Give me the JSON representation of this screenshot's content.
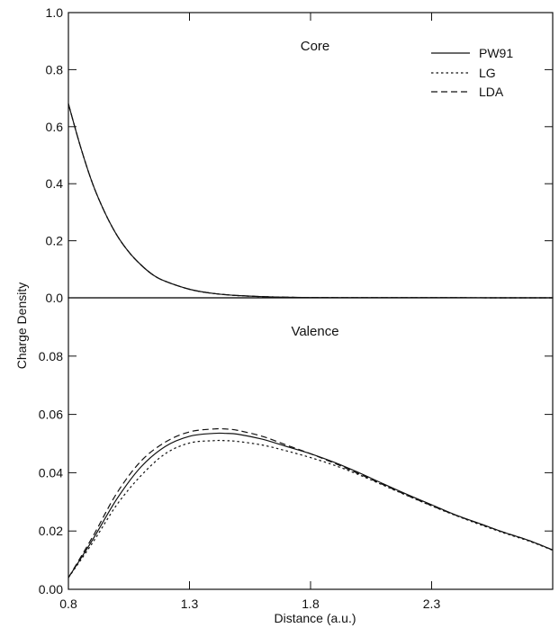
{
  "chart_data": [
    {
      "type": "line",
      "title": "Core",
      "xlabel": "Distance (a.u.)",
      "ylabel": "Charge Density",
      "xlim": [
        0.8,
        2.8
      ],
      "ylim": [
        0.0,
        1.0
      ],
      "yticks": [
        "0.0",
        "0.2",
        "0.4",
        "0.6",
        "0.8",
        "1.0"
      ],
      "ytick_values": [
        0.0,
        0.2,
        0.4,
        0.6,
        0.8,
        1.0
      ],
      "legend_position": "top-right",
      "series": [
        {
          "name": "PW91",
          "style": "solid",
          "x": [
            0.8,
            0.85,
            0.9,
            0.95,
            1.0,
            1.05,
            1.1,
            1.15,
            1.2,
            1.3,
            1.4,
            1.5,
            1.6,
            1.7,
            1.8,
            2.0,
            2.2,
            2.4,
            2.6,
            2.8
          ],
          "y": [
            0.68,
            0.53,
            0.4,
            0.3,
            0.22,
            0.16,
            0.115,
            0.08,
            0.058,
            0.03,
            0.015,
            0.008,
            0.004,
            0.002,
            0.001,
            0.0005,
            0.0003,
            0.0002,
            0.0001,
            0.0001
          ]
        },
        {
          "name": "LG",
          "style": "dotted",
          "x": [
            0.8,
            0.85,
            0.9,
            0.95,
            1.0,
            1.05,
            1.1,
            1.15,
            1.2,
            1.3,
            1.4,
            1.5,
            1.6,
            1.7,
            1.8,
            2.0,
            2.2,
            2.4,
            2.6,
            2.8
          ],
          "y": [
            0.68,
            0.53,
            0.4,
            0.3,
            0.22,
            0.16,
            0.115,
            0.08,
            0.058,
            0.03,
            0.015,
            0.008,
            0.004,
            0.002,
            0.001,
            0.0005,
            0.0003,
            0.0002,
            0.0001,
            0.0001
          ]
        },
        {
          "name": "LDA",
          "style": "dashed",
          "x": [
            0.8,
            0.85,
            0.9,
            0.95,
            1.0,
            1.05,
            1.1,
            1.15,
            1.2,
            1.3,
            1.4,
            1.5,
            1.6,
            1.7,
            1.8,
            2.0,
            2.2,
            2.4,
            2.6,
            2.8
          ],
          "y": [
            0.68,
            0.53,
            0.4,
            0.3,
            0.22,
            0.16,
            0.115,
            0.08,
            0.058,
            0.03,
            0.015,
            0.008,
            0.004,
            0.002,
            0.001,
            0.0005,
            0.0003,
            0.0002,
            0.0001,
            0.0001
          ]
        }
      ]
    },
    {
      "type": "line",
      "title": "Valence",
      "xlabel": "Distance (a.u.)",
      "ylabel": "Charge Density",
      "xlim": [
        0.8,
        2.8
      ],
      "ylim": [
        0.0,
        0.1
      ],
      "xticks": [
        "0.8",
        "1.3",
        "1.8",
        "2.3"
      ],
      "xtick_values": [
        0.8,
        1.3,
        1.8,
        2.3
      ],
      "yticks": [
        "0.00",
        "0.02",
        "0.04",
        "0.06",
        "0.08"
      ],
      "ytick_values": [
        0.0,
        0.02,
        0.04,
        0.06,
        0.08
      ],
      "series": [
        {
          "name": "PW91",
          "style": "solid",
          "x": [
            0.8,
            0.9,
            1.0,
            1.1,
            1.2,
            1.3,
            1.4,
            1.45,
            1.5,
            1.6,
            1.7,
            1.8,
            1.9,
            2.0,
            2.1,
            2.2,
            2.3,
            2.4,
            2.5,
            2.6,
            2.7,
            2.8
          ],
          "y": [
            0.004,
            0.017,
            0.031,
            0.042,
            0.049,
            0.0525,
            0.0535,
            0.0535,
            0.0532,
            0.0515,
            0.049,
            0.0465,
            0.0435,
            0.04,
            0.0362,
            0.0325,
            0.029,
            0.0255,
            0.0225,
            0.0195,
            0.0168,
            0.0135
          ]
        },
        {
          "name": "LG",
          "style": "dotted",
          "x": [
            0.8,
            0.9,
            1.0,
            1.1,
            1.2,
            1.3,
            1.4,
            1.45,
            1.5,
            1.6,
            1.7,
            1.8,
            1.9,
            2.0,
            2.1,
            2.2,
            2.3,
            2.4,
            2.5,
            2.6,
            2.7,
            2.8
          ],
          "y": [
            0.004,
            0.016,
            0.029,
            0.039,
            0.0465,
            0.0502,
            0.051,
            0.051,
            0.0507,
            0.0495,
            0.0475,
            0.0452,
            0.0425,
            0.0393,
            0.0357,
            0.0321,
            0.0286,
            0.0253,
            0.0222,
            0.0193,
            0.0166,
            0.0134
          ]
        },
        {
          "name": "LDA",
          "style": "dashed",
          "x": [
            0.8,
            0.9,
            1.0,
            1.1,
            1.2,
            1.3,
            1.4,
            1.45,
            1.5,
            1.6,
            1.7,
            1.8,
            1.9,
            2.0,
            2.1,
            2.2,
            2.3,
            2.4,
            2.5,
            2.6,
            2.7,
            2.8
          ],
          "y": [
            0.004,
            0.018,
            0.033,
            0.044,
            0.0505,
            0.054,
            0.055,
            0.055,
            0.0545,
            0.0525,
            0.0495,
            0.0465,
            0.0432,
            0.0396,
            0.0359,
            0.0322,
            0.0287,
            0.0254,
            0.0224,
            0.0195,
            0.0168,
            0.0135
          ]
        }
      ]
    }
  ]
}
